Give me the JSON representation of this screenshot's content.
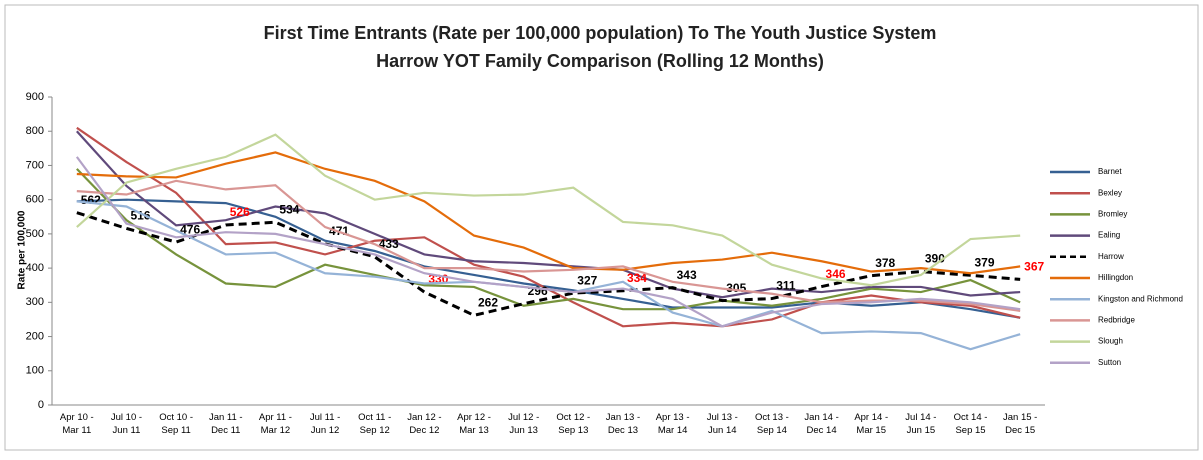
{
  "chart_data": {
    "type": "line",
    "title": "First Time Entrants (Rate per 100,000 population) To The Youth Justice System",
    "subtitle": "Harrow YOT Family Comparison (Rolling 12 Months)",
    "y_label": "Rate per 100,000",
    "categories": [
      "Apr 10 -\nMar 11",
      "Jul 10 -\nJun 11",
      "Oct 10 -\nSep 11",
      "Jan 11 -\nDec 11",
      "Apr 11 -\nMar 12",
      "Jul 11 -\nJun 12",
      "Oct 11 -\nSep 12",
      "Jan 12 -\nDec 12",
      "Apr 12 -\nMar 13",
      "Jul 12 -\nJun 13",
      "Oct 12 -\nSep 13",
      "Jan 13 -\nDec 13",
      "Apr 13 -\nMar 14",
      "Jul 13 -\nJun 14",
      "Oct 13 -\nSep 14",
      "Jan 14 -\nDec 14",
      "Apr 14 -\nMar 15",
      "Jul 14 -\nJun 15",
      "Oct 14 -\nSep 15",
      "Jan 15 -\nDec 15"
    ],
    "ylim": [
      0,
      900
    ],
    "yticks": [
      0,
      100,
      200,
      300,
      400,
      500,
      600,
      700,
      800,
      900
    ],
    "grid": false,
    "legend": "right",
    "series": [
      {
        "name": "Barnet",
        "color": "#366092",
        "values": [
          595,
          600,
          595,
          590,
          550,
          480,
          450,
          405,
          380,
          355,
          335,
          310,
          285,
          285,
          285,
          300,
          290,
          300,
          280,
          255
        ]
      },
      {
        "name": "Bexley",
        "color": "#c0504d",
        "values": [
          810,
          710,
          620,
          470,
          475,
          440,
          480,
          490,
          410,
          375,
          300,
          230,
          240,
          230,
          250,
          300,
          320,
          300,
          290,
          255
        ]
      },
      {
        "name": "Bromley",
        "color": "#77933c",
        "values": [
          690,
          540,
          440,
          355,
          345,
          410,
          380,
          350,
          345,
          290,
          310,
          280,
          280,
          305,
          290,
          310,
          340,
          330,
          365,
          300
        ]
      },
      {
        "name": "Ealing",
        "color": "#604a7b",
        "values": [
          800,
          640,
          525,
          540,
          580,
          560,
          500,
          440,
          420,
          415,
          405,
          395,
          340,
          315,
          340,
          330,
          345,
          345,
          320,
          330
        ]
      },
      {
        "name": "Harrow",
        "color": "#000000",
        "dashed": true,
        "data_labels": true,
        "label_colors": [
          "#000000",
          "#000000",
          "#000000",
          "#ff0000",
          "#000000",
          "#000000",
          "#000000",
          "#ff0000",
          "#000000",
          "#000000",
          "#000000",
          "#ff0000",
          "#000000",
          "#000000",
          "#000000",
          "#ff0000",
          "#000000",
          "#000000",
          "#000000",
          "#ff0000"
        ],
        "values": [
          562,
          516,
          476,
          526,
          534,
          471,
          433,
          330,
          262,
          296,
          327,
          334,
          343,
          305,
          311,
          346,
          378,
          390,
          379,
          367
        ]
      },
      {
        "name": "Hillingdon",
        "color": "#e46c0a",
        "values": [
          675,
          668,
          665,
          705,
          738,
          690,
          655,
          595,
          495,
          460,
          400,
          395,
          415,
          425,
          445,
          420,
          390,
          400,
          385,
          405
        ]
      },
      {
        "name": "Kingston and Richmond",
        "color": "#95b3d7",
        "values": [
          595,
          580,
          510,
          440,
          445,
          385,
          375,
          355,
          360,
          345,
          330,
          360,
          270,
          230,
          275,
          210,
          215,
          210,
          163,
          207
        ]
      },
      {
        "name": "Redbridge",
        "color": "#d99694",
        "values": [
          625,
          615,
          655,
          630,
          642,
          520,
          470,
          400,
          400,
          390,
          395,
          405,
          360,
          340,
          325,
          300,
          305,
          305,
          295,
          275
        ]
      },
      {
        "name": "Slough",
        "color": "#c3d69b",
        "values": [
          520,
          650,
          690,
          725,
          790,
          670,
          600,
          620,
          612,
          615,
          635,
          535,
          525,
          495,
          410,
          370,
          350,
          380,
          485,
          495
        ]
      },
      {
        "name": "Sutton",
        "color": "#b3a2c7",
        "values": [
          725,
          530,
          490,
          505,
          500,
          470,
          440,
          385,
          360,
          345,
          330,
          340,
          310,
          230,
          270,
          295,
          300,
          310,
          300,
          280
        ]
      }
    ]
  }
}
